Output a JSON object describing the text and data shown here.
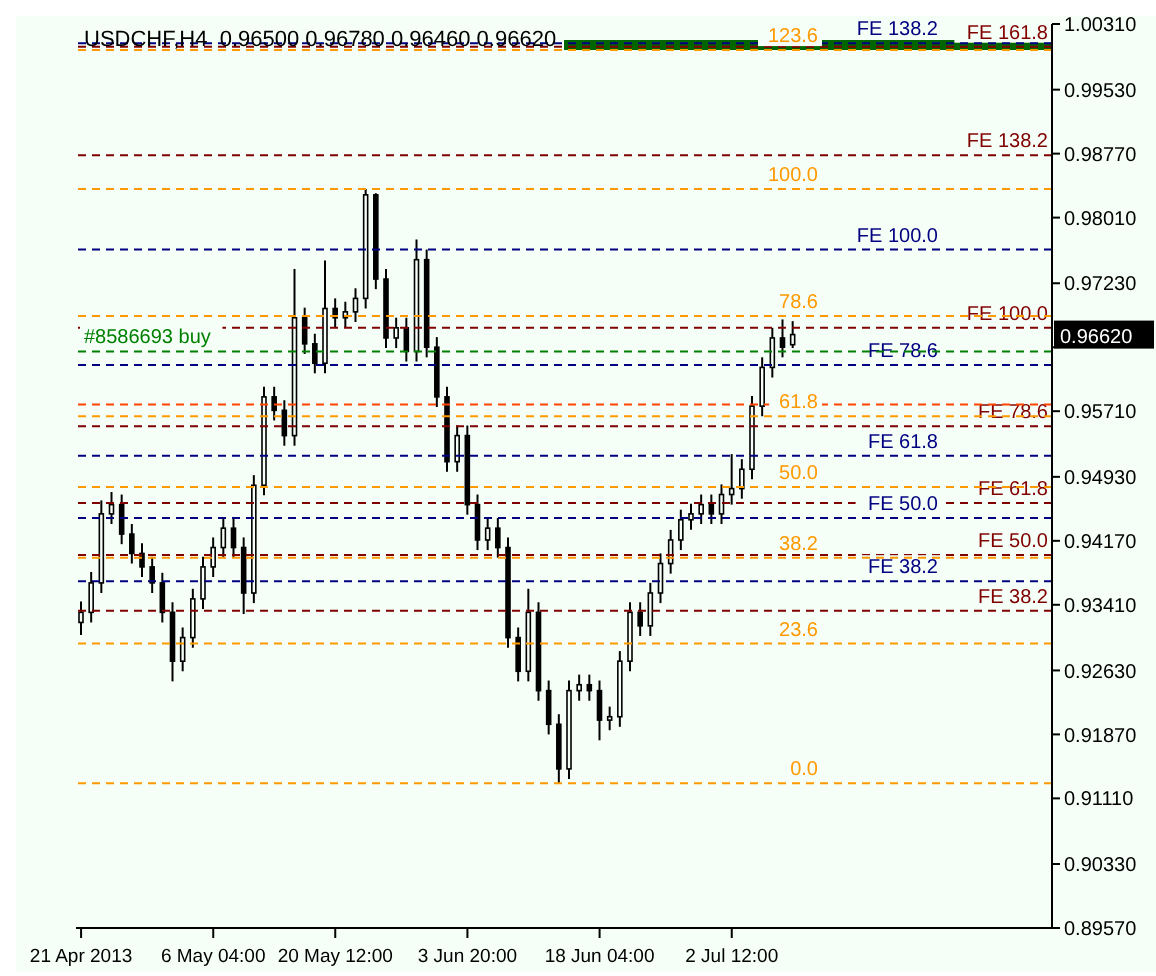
{
  "chart_data": {
    "type": "candlestick",
    "title": "USDCHF,H4  0.96500 0.96780 0.96460 0.96620",
    "color": "#000000",
    "categories": [
      "21 Apr 2013",
      null,
      null,
      null,
      null,
      null,
      null,
      null,
      null,
      null,
      null,
      null,
      null,
      "6 May 04:00",
      null,
      null,
      null,
      null,
      null,
      null,
      null,
      null,
      null,
      null,
      null,
      "20 May 12:00",
      null,
      null,
      null,
      null,
      null,
      null,
      null,
      null,
      null,
      null,
      null,
      null,
      "3 Jun 20:00",
      null,
      null,
      null,
      null,
      null,
      null,
      null,
      null,
      null,
      null,
      null,
      null,
      "18 Jun 04:00",
      null,
      null,
      null,
      null,
      null,
      null,
      null,
      null,
      null,
      null,
      null,
      null,
      "2 Jul 12:00",
      null,
      null,
      null,
      null,
      null,
      null,
      null,
      null,
      null,
      null,
      null,
      null,
      null,
      null,
      null,
      null,
      null,
      null,
      null,
      null,
      null,
      null,
      null,
      null,
      null,
      null,
      null,
      null,
      null,
      null,
      null
    ],
    "ohlc": [
      [
        0.932,
        0.9345,
        0.9305,
        0.9332
      ],
      [
        0.9332,
        0.938,
        0.932,
        0.9367
      ],
      [
        0.9367,
        0.9465,
        0.9355,
        0.9449
      ],
      [
        0.9449,
        0.9475,
        0.9437,
        0.946
      ],
      [
        0.946,
        0.9472,
        0.9413,
        0.9425
      ],
      [
        0.9425,
        0.9437,
        0.939,
        0.9402
      ],
      [
        0.9402,
        0.9414,
        0.9374,
        0.9386
      ],
      [
        0.9386,
        0.9398,
        0.9355,
        0.9367
      ],
      [
        0.9367,
        0.9379,
        0.932,
        0.9332
      ],
      [
        0.9332,
        0.9344,
        0.925,
        0.9274
      ],
      [
        0.9274,
        0.9314,
        0.9262,
        0.9302
      ],
      [
        0.9302,
        0.936,
        0.929,
        0.9348
      ],
      [
        0.9348,
        0.9398,
        0.9336,
        0.9386
      ],
      [
        0.9386,
        0.9421,
        0.9374,
        0.9409
      ],
      [
        0.9409,
        0.9444,
        0.9397,
        0.9432
      ],
      [
        0.9432,
        0.9444,
        0.9397,
        0.9409
      ],
      [
        0.9409,
        0.9421,
        0.933,
        0.9355
      ],
      [
        0.9355,
        0.9495,
        0.9343,
        0.9483
      ],
      [
        0.9483,
        0.96,
        0.9471,
        0.9588
      ],
      [
        0.9588,
        0.96,
        0.956,
        0.9572
      ],
      [
        0.9572,
        0.9584,
        0.953,
        0.9542
      ],
      [
        0.9542,
        0.974,
        0.953,
        0.9682
      ],
      [
        0.9682,
        0.9694,
        0.9639,
        0.9651
      ],
      [
        0.9651,
        0.9663,
        0.9616,
        0.9628
      ],
      [
        0.9628,
        0.975,
        0.9616,
        0.9693
      ],
      [
        0.9693,
        0.9705,
        0.967,
        0.9682
      ],
      [
        0.9682,
        0.9701,
        0.967,
        0.9689
      ],
      [
        0.9689,
        0.9717,
        0.9677,
        0.9705
      ],
      [
        0.9705,
        0.9835,
        0.9693,
        0.9828
      ],
      [
        0.9828,
        0.983,
        0.9716,
        0.9728
      ],
      [
        0.9728,
        0.974,
        0.9646,
        0.9658
      ],
      [
        0.9658,
        0.9682,
        0.9646,
        0.967
      ],
      [
        0.967,
        0.9682,
        0.963,
        0.9642
      ],
      [
        0.9642,
        0.9775,
        0.963,
        0.9751
      ],
      [
        0.9751,
        0.9763,
        0.9635,
        0.9647
      ],
      [
        0.9647,
        0.9659,
        0.9576,
        0.9588
      ],
      [
        0.9588,
        0.96,
        0.9499,
        0.9511
      ],
      [
        0.9511,
        0.9554,
        0.9499,
        0.9542
      ],
      [
        0.9542,
        0.9554,
        0.9448,
        0.946
      ],
      [
        0.946,
        0.9472,
        0.9406,
        0.9418
      ],
      [
        0.9418,
        0.9444,
        0.9406,
        0.9432
      ],
      [
        0.9432,
        0.9444,
        0.9397,
        0.9409
      ],
      [
        0.9409,
        0.9421,
        0.929,
        0.9302
      ],
      [
        0.9302,
        0.9314,
        0.925,
        0.9262
      ],
      [
        0.9262,
        0.936,
        0.925,
        0.9332
      ],
      [
        0.9332,
        0.9344,
        0.9227,
        0.9239
      ],
      [
        0.9239,
        0.9251,
        0.9187,
        0.9199
      ],
      [
        0.9199,
        0.9211,
        0.9129,
        0.9146
      ],
      [
        0.9146,
        0.9251,
        0.9134,
        0.9239
      ],
      [
        0.9239,
        0.9258,
        0.9227,
        0.9246
      ],
      [
        0.9246,
        0.9258,
        0.9227,
        0.9239
      ],
      [
        0.9239,
        0.9251,
        0.918,
        0.9204
      ],
      [
        0.9204,
        0.922,
        0.9192,
        0.9208
      ],
      [
        0.9208,
        0.9286,
        0.9196,
        0.9274
      ],
      [
        0.9274,
        0.9344,
        0.9262,
        0.9332
      ],
      [
        0.9332,
        0.9344,
        0.9304,
        0.9316
      ],
      [
        0.9316,
        0.9367,
        0.9304,
        0.9355
      ],
      [
        0.9355,
        0.9402,
        0.9343,
        0.939
      ],
      [
        0.939,
        0.943,
        0.9378,
        0.9418
      ],
      [
        0.9418,
        0.9454,
        0.9406,
        0.9442
      ],
      [
        0.9442,
        0.9461,
        0.943,
        0.9449
      ],
      [
        0.9449,
        0.9472,
        0.9437,
        0.946
      ],
      [
        0.946,
        0.9472,
        0.9437,
        0.9449
      ],
      [
        0.9449,
        0.9484,
        0.9437,
        0.9472
      ],
      [
        0.9472,
        0.952,
        0.946,
        0.9479
      ],
      [
        0.9479,
        0.9514,
        0.9467,
        0.9502
      ],
      [
        0.9502,
        0.9589,
        0.949,
        0.9577
      ],
      [
        0.9577,
        0.9635,
        0.9565,
        0.9623
      ],
      [
        0.9623,
        0.967,
        0.9611,
        0.9658
      ],
      [
        0.9658,
        0.968,
        0.9635,
        0.9647
      ],
      [
        0.965,
        0.9678,
        0.9646,
        0.9662
      ],
      null,
      null,
      null,
      null,
      null,
      null,
      null,
      null,
      null,
      null,
      null,
      null,
      null,
      null,
      null,
      null,
      null,
      null,
      null,
      null,
      null,
      null,
      null,
      null,
      null
    ],
    "ylim": [
      0.8957,
      1.0031
    ],
    "yticks": [
      {
        "value": 1.0031,
        "label": "1.00310"
      },
      {
        "value": 0.9953,
        "label": "0.99530"
      },
      {
        "value": 0.9877,
        "label": "0.98770"
      },
      {
        "value": 0.9801,
        "label": "0.98010"
      },
      {
        "value": 0.9723,
        "label": "0.97230"
      },
      {
        "value": 0.9647,
        "label": null
      },
      {
        "value": 0.9571,
        "label": "0.95710"
      },
      {
        "value": 0.9493,
        "label": "0.94930"
      },
      {
        "value": 0.9417,
        "label": "0.94170"
      },
      {
        "value": 0.9341,
        "label": "0.93410"
      },
      {
        "value": 0.9263,
        "label": "0.92630"
      },
      {
        "value": 0.9187,
        "label": "0.91870"
      },
      {
        "value": 0.9111,
        "label": "0.91110"
      },
      {
        "value": 0.9033,
        "label": "0.90330"
      },
      {
        "value": 0.8957,
        "label": "0.89570"
      }
    ],
    "grid": false,
    "legend": false,
    "ref_lines": [
      {
        "axis": "y",
        "value": 1.0004,
        "label": "FE 161.8",
        "color": "#800000",
        "line_style": "dashed"
      },
      {
        "axis": "y",
        "value": 0.9875,
        "label": "FE 138.2",
        "color": "#800000",
        "line_style": "dashed"
      },
      {
        "axis": "y",
        "value": 0.967,
        "label": "FE 100.0",
        "color": "#800000",
        "line_style": "dashed"
      },
      {
        "axis": "y",
        "value": 0.9553,
        "label": "FE 78.6",
        "color": "#800000",
        "line_style": "dashed"
      },
      {
        "axis": "y",
        "value": 0.9462,
        "label": "FE 61.8",
        "color": "#800000",
        "line_style": "dashed"
      },
      {
        "axis": "y",
        "value": 0.94,
        "label": "FE 50.0",
        "color": "#800000",
        "line_style": "dashed"
      },
      {
        "axis": "y",
        "value": 0.9334,
        "label": "FE 38.2",
        "color": "#800000",
        "line_style": "dashed"
      },
      {
        "axis": "y",
        "value": 1.0008,
        "label": "FE 138.2",
        "color": "#000080",
        "line_style": "dashed"
      },
      {
        "axis": "y",
        "value": 0.9763,
        "label": "FE 100.0",
        "color": "#000080",
        "line_style": "dashed"
      },
      {
        "axis": "y",
        "value": 0.9626,
        "label": "FE 78.6",
        "color": "#000080",
        "line_style": "dashed"
      },
      {
        "axis": "y",
        "value": 0.9518,
        "label": "FE 61.8",
        "color": "#000080",
        "line_style": "dashed"
      },
      {
        "axis": "y",
        "value": 0.9444,
        "label": "FE 50.0",
        "color": "#000080",
        "line_style": "dashed"
      },
      {
        "axis": "y",
        "value": 0.9369,
        "label": "FE 38.2",
        "color": "#000080",
        "line_style": "dashed"
      },
      {
        "axis": "y",
        "value": 1.0,
        "color": "#ff9900",
        "line_style": "dashed"
      },
      {
        "axis": "y",
        "value": 0.9835,
        "color": "#ff9900",
        "line_style": "dashed"
      },
      {
        "axis": "y",
        "value": 0.9684,
        "color": "#ff9900",
        "line_style": "dashed"
      },
      {
        "axis": "y",
        "value": 0.9565,
        "color": "#ff9900",
        "line_style": "dashed"
      },
      {
        "axis": "y",
        "value": 0.9481,
        "color": "#ff9900",
        "line_style": "dashed"
      },
      {
        "axis": "y",
        "value": 0.9397,
        "color": "#ff9900",
        "line_style": "dashed"
      },
      {
        "axis": "y",
        "value": 0.9295,
        "color": "#ff9900",
        "line_style": "dashed"
      },
      {
        "axis": "y",
        "value": 0.9129,
        "color": "#ff9900",
        "line_style": "dashed"
      },
      {
        "axis": "y",
        "value": 0.9642,
        "label": "#8586693 buy",
        "color": "#008000",
        "line_style": "dashed"
      },
      {
        "axis": "y",
        "value": 0.9579,
        "color": "#ff4500",
        "line_style": "dashed"
      }
    ],
    "bands": [
      {
        "axis": "y",
        "from": 1.0,
        "to": 1.0012,
        "color": "#006400"
      }
    ],
    "annotations": [
      "0.96620",
      {
        "text": "123.6",
        "y": 1.0
      },
      {
        "text": "100.0",
        "y": 0.9835
      },
      {
        "text": "78.6",
        "y": 0.9684
      },
      {
        "text": "61.8",
        "y": 0.9565
      },
      {
        "text": "50.0",
        "y": 0.9481
      },
      {
        "text": "38.2",
        "y": 0.9397
      },
      {
        "text": "23.6",
        "y": 0.9295
      },
      {
        "text": "0.0",
        "y": 0.9129
      }
    ]
  }
}
